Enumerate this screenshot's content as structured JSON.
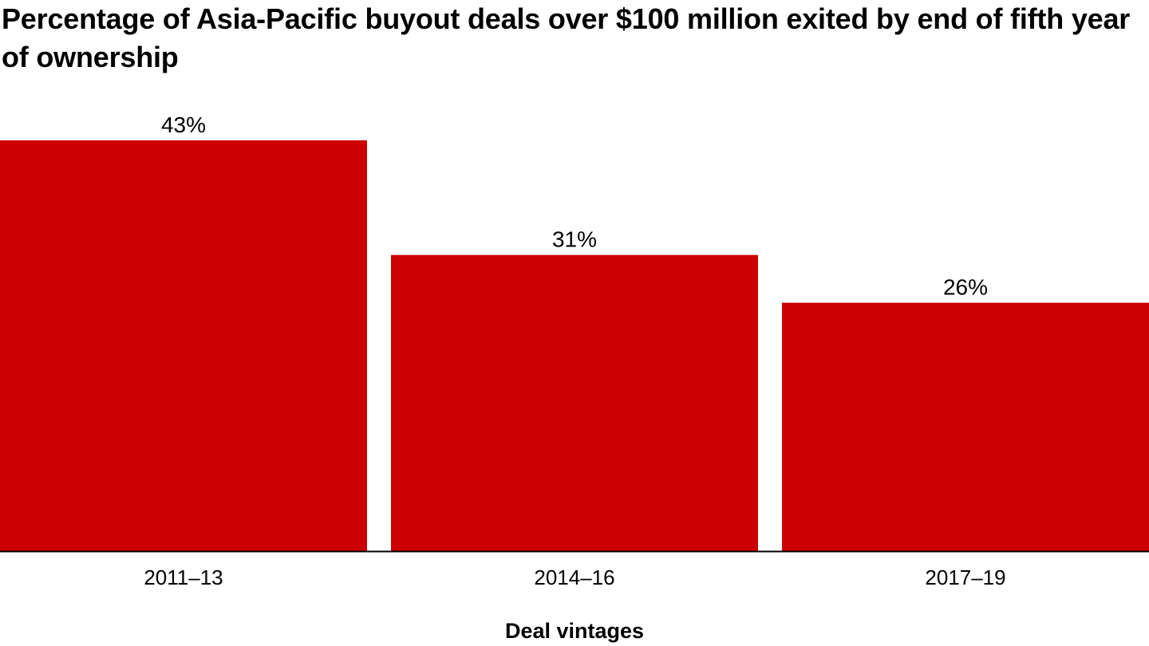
{
  "chart_data": {
    "type": "bar",
    "title": "Percentage of Asia-Pacific buyout deals over $100 million exited by end of fifth year of ownership",
    "xlabel": "Deal vintages",
    "ylabel": "",
    "categories": [
      "2011–13",
      "2014–16",
      "2017–19"
    ],
    "values": [
      43,
      31,
      26
    ],
    "data_labels": [
      "43%",
      "31%",
      "26%"
    ],
    "ylim": [
      0,
      43
    ],
    "grid": false,
    "legend": "none",
    "colors": {
      "bar": "#cc0000",
      "baseline": "#000000"
    }
  }
}
